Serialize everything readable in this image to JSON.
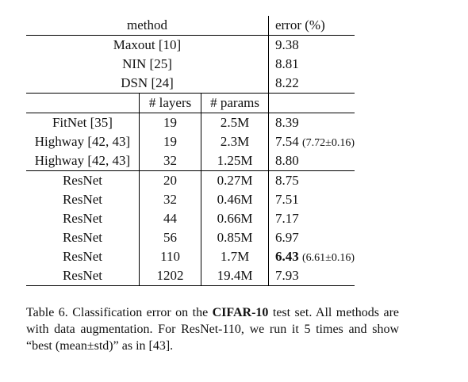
{
  "table": {
    "headers": {
      "method": "method",
      "layers": "# layers",
      "params": "# params",
      "error": "error (%)"
    },
    "baselines": [
      {
        "method": "Maxout [10]",
        "error": "9.38"
      },
      {
        "method": "NIN [25]",
        "error": "8.81"
      },
      {
        "method": "DSN [24]",
        "error": "8.22"
      }
    ],
    "deep": [
      {
        "method": "FitNet [35]",
        "layers": "19",
        "params": "2.5M",
        "error": "8.39",
        "error_note": ""
      },
      {
        "method": "Highway [42, 43]",
        "layers": "19",
        "params": "2.3M",
        "error": "7.54",
        "error_note": "(7.72±0.16)"
      },
      {
        "method": "Highway [42, 43]",
        "layers": "32",
        "params": "1.25M",
        "error": "8.80",
        "error_note": ""
      }
    ],
    "resnet": [
      {
        "method": "ResNet",
        "layers": "20",
        "params": "0.27M",
        "error": "8.75",
        "error_note": ""
      },
      {
        "method": "ResNet",
        "layers": "32",
        "params": "0.46M",
        "error": "7.51",
        "error_note": ""
      },
      {
        "method": "ResNet",
        "layers": "44",
        "params": "0.66M",
        "error": "7.17",
        "error_note": ""
      },
      {
        "method": "ResNet",
        "layers": "56",
        "params": "0.85M",
        "error": "6.97",
        "error_note": ""
      },
      {
        "method": "ResNet",
        "layers": "110",
        "params": "1.7M",
        "error": "6.43",
        "error_note": "(6.61±0.16)"
      },
      {
        "method": "ResNet",
        "layers": "1202",
        "params": "19.4M",
        "error": "7.93",
        "error_note": ""
      }
    ]
  },
  "caption": {
    "prefix": "Table 6. Classification error on the ",
    "dataset": "CIFAR-10",
    "suffix": " test set. All methods are with data augmentation. For ResNet-110, we run it 5 times and show “best (mean±std)” as in [43]."
  }
}
